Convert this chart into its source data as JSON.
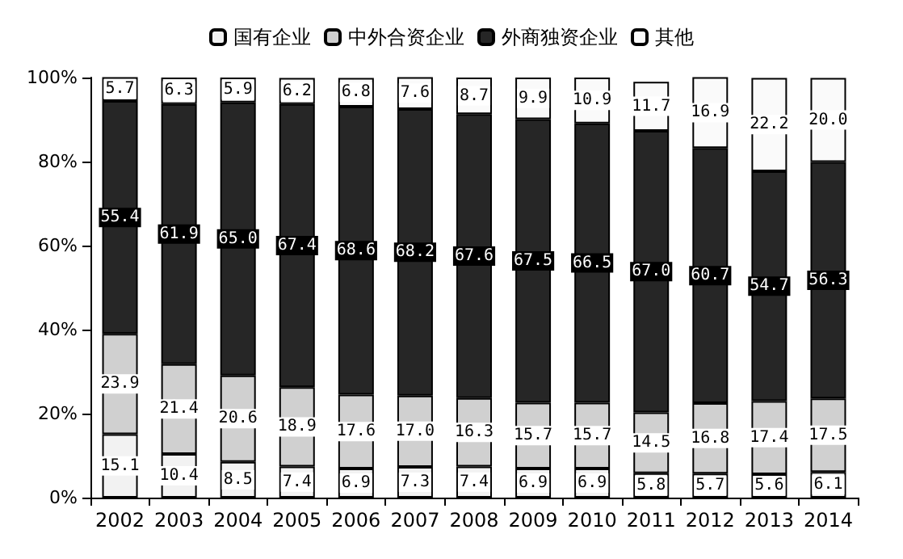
{
  "chart_data": {
    "type": "bar",
    "stacked": true,
    "categories": [
      "2002",
      "2003",
      "2004",
      "2005",
      "2006",
      "2007",
      "2008",
      "2009",
      "2010",
      "2011",
      "2012",
      "2013",
      "2014"
    ],
    "series": [
      {
        "name": "国有企业",
        "color": "#f2f2f2",
        "values": [
          15.1,
          10.4,
          8.5,
          7.4,
          6.9,
          7.3,
          7.4,
          6.9,
          6.9,
          5.8,
          5.7,
          5.6,
          6.1
        ],
        "value_labels": [
          "15.1",
          "10.4",
          "8.5",
          "7.4",
          "6.9",
          "7.3",
          "7.4",
          "6.9",
          "6.9",
          "5.8",
          "5.7",
          "5.6",
          "6.1"
        ]
      },
      {
        "name": "中外合资企业",
        "color": "#d0d0d0",
        "values": [
          23.9,
          21.4,
          20.6,
          18.9,
          17.6,
          17.0,
          16.3,
          15.7,
          15.7,
          14.5,
          16.8,
          17.4,
          17.5
        ],
        "value_labels": [
          "23.9",
          "21.4",
          "20.6",
          "18.9",
          "17.6",
          "17.0",
          "16.3",
          "15.7",
          "15.7",
          "14.5",
          "16.8",
          "17.4",
          "17.5"
        ]
      },
      {
        "name": "外商独资企业",
        "color": "#262626",
        "values": [
          55.4,
          61.9,
          65.0,
          67.4,
          68.6,
          68.2,
          67.6,
          67.5,
          66.5,
          67.0,
          60.7,
          54.7,
          56.3
        ],
        "value_labels": [
          "55.4",
          "61.9",
          "65.0",
          "67.4",
          "68.6",
          "68.2",
          "67.6",
          "67.5",
          "66.5",
          "67.0",
          "60.7",
          "54.7",
          "56.3"
        ]
      },
      {
        "name": "其他",
        "color": "#fafafa",
        "values": [
          5.7,
          6.3,
          5.9,
          6.2,
          6.8,
          7.6,
          8.7,
          9.9,
          10.9,
          11.7,
          16.9,
          22.2,
          20.0
        ],
        "value_labels": [
          "5.7",
          "6.3",
          "5.9",
          "6.2",
          "6.8",
          "7.6",
          "8.7",
          "9.9",
          "10.9",
          "11.7",
          "16.9",
          "22.2",
          "20.0"
        ]
      }
    ],
    "ylim": [
      0,
      100
    ],
    "yticks": [
      {
        "value": 0,
        "label": "0%"
      },
      {
        "value": 20,
        "label": "20%"
      },
      {
        "value": 40,
        "label": "40%"
      },
      {
        "value": 60,
        "label": "60%"
      },
      {
        "value": 80,
        "label": "80%"
      },
      {
        "value": 100,
        "label": "100%"
      }
    ],
    "grid": false,
    "legend": "top"
  }
}
